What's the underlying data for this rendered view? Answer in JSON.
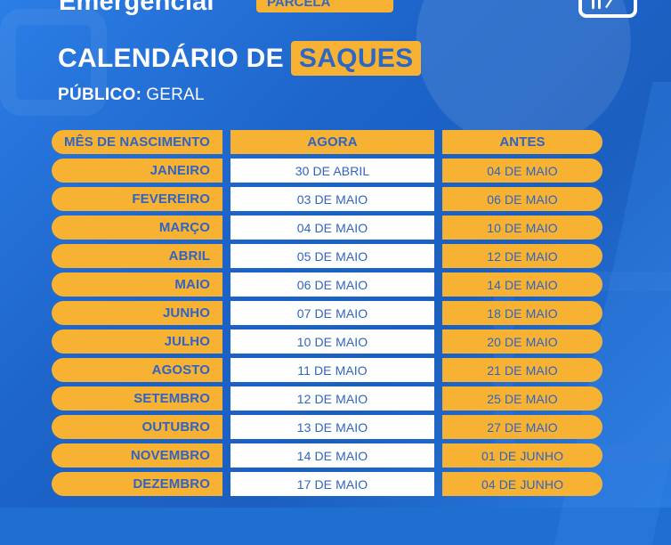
{
  "header": {
    "top_left_text": "Emergencial",
    "top_badge_text": "PARCELA",
    "title_main": "CALENDÁRIO DE",
    "title_accent": "SAQUES",
    "subtitle_label": "PÚBLICO:",
    "subtitle_value": "GERAL"
  },
  "table": {
    "columns": {
      "month": "MÊS DE NASCIMENTO",
      "agora": "AGORA",
      "antes": "ANTES"
    },
    "rows": [
      {
        "month": "JANEIRO",
        "agora": "30 DE ABRIL",
        "antes": "04 DE MAIO"
      },
      {
        "month": "FEVEREIRO",
        "agora": "03 DE MAIO",
        "antes": "06 DE MAIO"
      },
      {
        "month": "MARÇO",
        "agora": "04 DE MAIO",
        "antes": "10 DE MAIO"
      },
      {
        "month": "ABRIL",
        "agora": "05 DE MAIO",
        "antes": "12 DE MAIO"
      },
      {
        "month": "MAIO",
        "agora": "06 DE MAIO",
        "antes": "14 DE MAIO"
      },
      {
        "month": "JUNHO",
        "agora": "07 DE MAIO",
        "antes": "18 DE MAIO"
      },
      {
        "month": "JULHO",
        "agora": "10 DE MAIO",
        "antes": "20 DE MAIO"
      },
      {
        "month": "AGOSTO",
        "agora": "11 DE MAIO",
        "antes": "21 DE MAIO"
      },
      {
        "month": "SETEMBRO",
        "agora": "12 DE MAIO",
        "antes": "25 DE MAIO"
      },
      {
        "month": "OUTUBRO",
        "agora": "13 DE MAIO",
        "antes": "27 DE MAIO"
      },
      {
        "month": "NOVEMBRO",
        "agora": "14 DE MAIO",
        "antes": "01 DE JUNHO"
      },
      {
        "month": "DEZEMBRO",
        "agora": "17 DE MAIO",
        "antes": "04 DE JUNHO"
      }
    ]
  },
  "icons": {
    "logo_top_right": "app-logo-icon"
  },
  "colors": {
    "background": "#1f6fd0",
    "accent": "#f7b233",
    "text_blue": "#2f64c3",
    "white": "#ffffff"
  }
}
